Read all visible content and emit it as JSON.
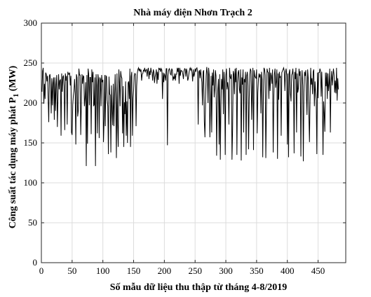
{
  "chart_data": {
    "type": "line",
    "title": "Nhà máy điện Nhơn Trạch 2",
    "xlabel": "Số mẫu dữ liệu thu thập từ tháng 4-8/2019",
    "ylabel_main": "Công suất tác dụng máy phát P",
    "ylabel_sub": "1",
    "ylabel_unit": " (MW)",
    "xlim": [
      0,
      495
    ],
    "ylim": [
      0,
      300
    ],
    "x_ticks": [
      0,
      50,
      100,
      150,
      200,
      250,
      300,
      350,
      400,
      450
    ],
    "y_ticks": [
      0,
      50,
      100,
      150,
      200,
      250,
      300
    ],
    "grid": true,
    "series": [
      {
        "color": "#000000",
        "y": [
          214,
          240,
          244,
          199,
          224,
          205,
          238,
          236,
          227,
          234,
          207,
          176,
          234,
          236,
          223,
          187,
          231,
          197,
          225,
          232,
          179,
          232,
          190,
          223,
          235,
          170,
          208,
          236,
          217,
          228,
          229,
          159,
          237,
          214,
          233,
          234,
          221,
          166,
          237,
          228,
          234,
          173,
          239,
          236,
          236,
          238,
          222,
          234,
          163,
          160,
          198,
          209,
          215,
          230,
          213,
          148,
          236,
          232,
          183,
          190,
          243,
          235,
          235,
          160,
          198,
          236,
          224,
          234,
          233,
          196,
          206,
          226,
          121,
          235,
          149,
          243,
          236,
          197,
          232,
          232,
          161,
          242,
          226,
          239,
          196,
          198,
          232,
          121,
          236,
          222,
          162,
          236,
          229,
          156,
          232,
          230,
          196,
          235,
          226,
          229,
          151,
          179,
          235,
          171,
          234,
          233,
          204,
          196,
          136,
          233,
          211,
          210,
          138,
          222,
          190,
          172,
          224,
          171,
          206,
          236,
          201,
          131,
          237,
          173,
          145,
          242,
          226,
          196,
          240,
          233,
          231,
          162,
          221,
          145,
          201,
          186,
          227,
          159,
          202,
          150,
          225,
          227,
          205,
          243,
          145,
          233,
          239,
          159,
          206,
          216,
          234,
          237,
          236,
          171,
          221,
          237,
          242,
          244,
          240,
          243,
          239,
          242,
          228,
          236,
          237,
          241,
          240,
          244,
          239,
          241,
          242,
          233,
          241,
          244,
          230,
          240,
          235,
          244,
          239,
          238,
          228,
          242,
          239,
          225,
          233,
          236,
          242,
          224,
          239,
          229,
          244,
          242,
          243,
          239,
          243,
          241,
          205,
          238,
          226,
          237,
          234,
          228,
          243,
          243,
          147,
          234,
          241,
          243,
          241,
          236,
          235,
          243,
          241,
          228,
          233,
          230,
          237,
          228,
          236,
          236,
          244,
          239,
          244,
          224,
          244,
          234,
          241,
          240,
          240,
          236,
          230,
          240,
          243,
          242,
          233,
          243,
          239,
          228,
          231,
          237,
          242,
          244,
          241,
          243,
          238,
          227,
          242,
          233,
          236,
          243,
          239,
          243,
          244,
          239,
          173,
          239,
          241,
          231,
          242,
          234,
          226,
          197,
          239,
          241,
          177,
          157,
          203,
          234,
          245,
          236,
          200,
          244,
          235,
          157,
          192,
          234,
          163,
          238,
          222,
          242,
          207,
          218,
          241,
          234,
          134,
          196,
          218,
          230,
          148,
          236,
          129,
          196,
          230,
          217,
          242,
          186,
          239,
          225,
          135,
          235,
          243,
          217,
          226,
          218,
          173,
          244,
          233,
          230,
          236,
          129,
          167,
          240,
          236,
          211,
          243,
          226,
          244,
          135,
          226,
          238,
          241,
          217,
          212,
          242,
          128,
          232,
          223,
          242,
          163,
          230,
          226,
          239,
          135,
          234,
          239,
          222,
          142,
          205,
          236,
          243,
          240,
          179,
          217,
          244,
          141,
          241,
          234,
          232,
          231,
          242,
          162,
          213,
          229,
          237,
          232,
          236,
          187,
          239,
          229,
          132,
          210,
          244,
          242,
          235,
          131,
          195,
          243,
          239,
          238,
          205,
          244,
          215,
          238,
          234,
          224,
          242,
          138,
          206,
          236,
          243,
          219,
          227,
          242,
          130,
          237,
          204,
          239,
          232,
          233,
          159,
          238,
          240,
          242,
          244,
          240,
          215,
          238,
          243,
          234,
          148,
          237,
          132,
          238,
          242,
          212,
          202,
          235,
          237,
          243,
          226,
          137,
          239,
          230,
          244,
          163,
          237,
          213,
          218,
          243,
          234,
          240,
          133,
          223,
          241,
          222,
          127,
          213,
          239,
          234,
          241,
          208,
          185,
          242,
          231,
          187,
          151,
          207,
          244,
          223,
          231,
          211,
          239,
          242,
          196,
          227,
          214,
          203,
          136,
          238,
          206,
          238,
          238,
          243,
          240,
          208,
          239,
          212,
          135,
          202,
          187,
          164,
          238,
          221,
          238,
          205,
          237,
          215,
          224,
          243,
          163,
          226,
          240,
          222,
          233,
          243,
          235,
          213,
          228,
          212,
          244,
          203,
          231,
          217
        ]
      }
    ]
  }
}
